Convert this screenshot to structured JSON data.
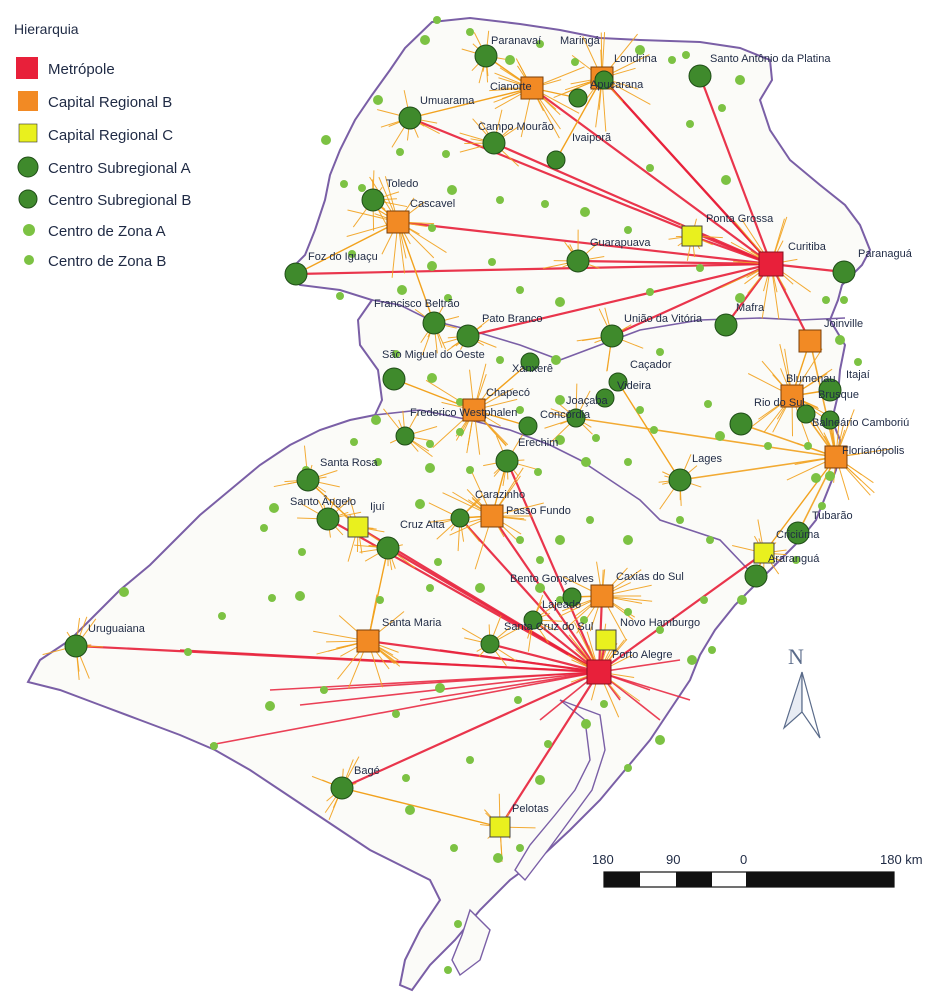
{
  "legend": {
    "title": "Hierarquia",
    "items": [
      {
        "key": "metropole",
        "label": "Metrópole",
        "shape": "square",
        "color": "#e8203a"
      },
      {
        "key": "capital_b",
        "label": "Capital Regional B",
        "shape": "square",
        "color": "#f28a24"
      },
      {
        "key": "capital_c",
        "label": "Capital Regional C",
        "shape": "square",
        "color": "#e9f01e"
      },
      {
        "key": "sub_a",
        "label": "Centro Subregional A",
        "shape": "circle-large",
        "color": "#3f8a2c"
      },
      {
        "key": "sub_b",
        "label": "Centro Subregional B",
        "shape": "circle-medium",
        "color": "#3f8a2c"
      },
      {
        "key": "zona_a",
        "label": "Centro de Zona A",
        "shape": "circle-small",
        "color": "#7cc243"
      },
      {
        "key": "zona_b",
        "label": "Centro de Zona B",
        "shape": "circle-tiny",
        "color": "#7cc243"
      }
    ]
  },
  "colors": {
    "metro_link": "#e8203a",
    "regional_link": "#f2a21e",
    "border": "#7a5fa6",
    "land": "#fbfbf8",
    "background": "#ffffff"
  },
  "scale_bar": {
    "labels": [
      "180",
      "90",
      "0",
      "180 km"
    ]
  },
  "north_arrow": {
    "label": "N"
  },
  "cities": [
    {
      "name": "Paranavaí",
      "type": "sub_a"
    },
    {
      "name": "Maringá",
      "type": "capital_b"
    },
    {
      "name": "Londrina",
      "type": "capital_b"
    },
    {
      "name": "Santo Antônio da Platina",
      "type": "sub_a"
    },
    {
      "name": "Cianorte",
      "type": "sub_b"
    },
    {
      "name": "Apucarana",
      "type": "sub_b"
    },
    {
      "name": "Umuarama",
      "type": "sub_a"
    },
    {
      "name": "Campo Mourão",
      "type": "sub_a"
    },
    {
      "name": "Ivaiporã",
      "type": "sub_b"
    },
    {
      "name": "Toledo",
      "type": "sub_a"
    },
    {
      "name": "Cascavel",
      "type": "capital_b"
    },
    {
      "name": "Ponta Grossa",
      "type": "capital_c"
    },
    {
      "name": "Curitiba",
      "type": "metropole"
    },
    {
      "name": "Paranaguá",
      "type": "sub_a"
    },
    {
      "name": "Guarapuava",
      "type": "sub_a"
    },
    {
      "name": "Foz do Iguaçu",
      "type": "sub_a"
    },
    {
      "name": "Francisco Beltrão",
      "type": "sub_a"
    },
    {
      "name": "Pato Branco",
      "type": "sub_a"
    },
    {
      "name": "União da Vitória",
      "type": "sub_a"
    },
    {
      "name": "Mafra",
      "type": "sub_a"
    },
    {
      "name": "Joinville",
      "type": "capital_b"
    },
    {
      "name": "São Miguel do Oeste",
      "type": "sub_a"
    },
    {
      "name": "Xanxerê",
      "type": "sub_b"
    },
    {
      "name": "Caçador",
      "type": "sub_b"
    },
    {
      "name": "Videira",
      "type": "sub_b"
    },
    {
      "name": "Itajaí",
      "type": "sub_a"
    },
    {
      "name": "Blumenau",
      "type": "capital_b"
    },
    {
      "name": "Chapecó",
      "type": "capital_b"
    },
    {
      "name": "Joaçaba",
      "type": "sub_b"
    },
    {
      "name": "Rio do Sul",
      "type": "sub_a"
    },
    {
      "name": "Brusque",
      "type": "sub_b"
    },
    {
      "name": "Frederico Westphalen",
      "type": "sub_b"
    },
    {
      "name": "Concórdia",
      "type": "sub_b"
    },
    {
      "name": "Balneário Camboriú",
      "type": "sub_b"
    },
    {
      "name": "Erechim",
      "type": "sub_a"
    },
    {
      "name": "Florianópolis",
      "type": "capital_b"
    },
    {
      "name": "Santa Rosa",
      "type": "sub_a"
    },
    {
      "name": "Lages",
      "type": "sub_a"
    },
    {
      "name": "Santo Ângelo",
      "type": "sub_a"
    },
    {
      "name": "Carazinho",
      "type": "sub_b"
    },
    {
      "name": "Ijuí",
      "type": "capital_c"
    },
    {
      "name": "Passo Fundo",
      "type": "capital_b"
    },
    {
      "name": "Tubarão",
      "type": "sub_a"
    },
    {
      "name": "Cruz Alta",
      "type": "sub_a"
    },
    {
      "name": "Criciúma",
      "type": "capital_c"
    },
    {
      "name": "Araranguá",
      "type": "sub_a"
    },
    {
      "name": "Bento Gonçalves",
      "type": "sub_b"
    },
    {
      "name": "Caxias do Sul",
      "type": "capital_b"
    },
    {
      "name": "Lajeado",
      "type": "sub_b"
    },
    {
      "name": "Santa Cruz do Sul",
      "type": "sub_b"
    },
    {
      "name": "Novo Hamburgo",
      "type": "capital_c"
    },
    {
      "name": "Uruguaiana",
      "type": "sub_a"
    },
    {
      "name": "Santa Maria",
      "type": "capital_b"
    },
    {
      "name": "Porto Alegre",
      "type": "metropole"
    },
    {
      "name": "Bagé",
      "type": "sub_a"
    },
    {
      "name": "Pelotas",
      "type": "capital_c"
    }
  ]
}
